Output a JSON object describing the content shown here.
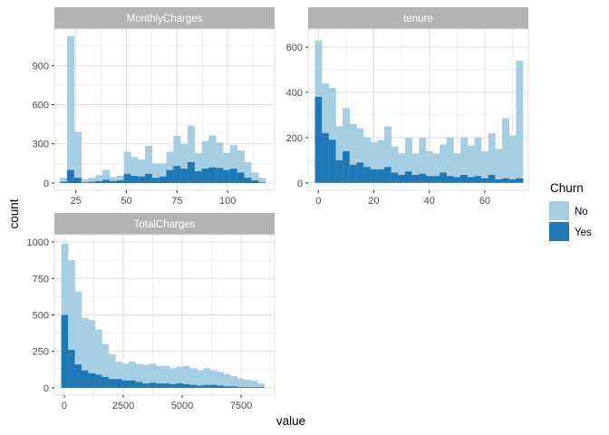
{
  "chart_data": {
    "type": "bar",
    "subtype": "faceted stacked histogram",
    "xlabel": "value",
    "ylabel": "count",
    "colors": {
      "No": "#a6cee3",
      "Yes": "#1f78b4",
      "strip_background": "#b3b3b3",
      "grid": "#dedede"
    },
    "legend": {
      "title": "Churn",
      "position": "right",
      "entries": [
        "No",
        "Yes"
      ]
    },
    "grid": true,
    "facets": [
      {
        "strip": "MonthlyCharges",
        "xlim": [
          14.4,
          123.2
        ],
        "ylim": [
          -56,
          1180
        ],
        "x_ticks": [
          25,
          50,
          75,
          100
        ],
        "x_tick_labels": [
          "25",
          "50",
          "75",
          "100"
        ],
        "y_ticks": [
          0,
          300,
          600,
          900
        ],
        "y_tick_labels": [
          "0",
          "300",
          "600",
          "900"
        ],
        "binwidth": 3.5,
        "bin_starts": [
          17.2,
          20.7,
          24.2,
          27.7,
          31.2,
          34.7,
          38.2,
          41.7,
          45.2,
          48.7,
          52.2,
          55.7,
          59.2,
          62.7,
          66.2,
          69.7,
          73.2,
          76.7,
          80.2,
          83.7,
          87.2,
          90.7,
          94.2,
          97.7,
          101.2,
          104.7,
          108.2,
          111.7,
          115.2
        ],
        "total": [
          42,
          1124,
          392,
          30,
          40,
          60,
          100,
          45,
          55,
          240,
          200,
          180,
          285,
          150,
          150,
          240,
          360,
          300,
          440,
          230,
          320,
          365,
          310,
          230,
          290,
          250,
          160,
          80,
          40
        ],
        "yes": [
          10,
          100,
          40,
          5,
          8,
          15,
          25,
          15,
          20,
          70,
          55,
          50,
          70,
          40,
          50,
          100,
          130,
          110,
          160,
          90,
          110,
          120,
          115,
          100,
          110,
          80,
          40,
          20,
          5
        ]
      },
      {
        "strip": "tenure",
        "xlim": [
          -3.7,
          75.7
        ],
        "ylim": [
          -33,
          680
        ],
        "x_ticks": [
          0,
          20,
          40,
          60
        ],
        "x_tick_labels": [
          "0",
          "20",
          "40",
          "60"
        ],
        "y_ticks": [
          0,
          200,
          400,
          600
        ],
        "y_tick_labels": [
          "0",
          "200",
          "400",
          "600"
        ],
        "binwidth": 2.5,
        "bin_starts": [
          -1.25,
          1.25,
          3.75,
          6.25,
          8.75,
          11.25,
          13.75,
          16.25,
          18.75,
          21.25,
          23.75,
          26.25,
          28.75,
          31.25,
          33.75,
          36.25,
          38.75,
          41.25,
          43.75,
          46.25,
          48.75,
          51.25,
          53.75,
          56.25,
          58.75,
          61.25,
          63.75,
          66.25,
          68.75,
          71.25
        ],
        "total": [
          630,
          440,
          420,
          250,
          330,
          260,
          240,
          200,
          180,
          190,
          250,
          160,
          130,
          200,
          130,
          200,
          140,
          130,
          170,
          200,
          130,
          200,
          165,
          200,
          140,
          220,
          150,
          285,
          210,
          540
        ],
        "yes": [
          380,
          220,
          190,
          100,
          140,
          80,
          90,
          70,
          60,
          60,
          70,
          45,
          35,
          50,
          35,
          40,
          30,
          30,
          45,
          30,
          25,
          35,
          25,
          30,
          20,
          35,
          15,
          20,
          15,
          20
        ]
      },
      {
        "strip": "TotalCharges",
        "xlim": [
          -420,
          8920
        ],
        "ylim": [
          -50,
          1050
        ],
        "x_ticks": [
          0,
          2500,
          5000,
          7500
        ],
        "x_tick_labels": [
          "0",
          "2500",
          "5000",
          "7500"
        ],
        "y_ticks": [
          0,
          250,
          500,
          750,
          1000
        ],
        "y_tick_labels": [
          "0",
          "250",
          "500",
          "750",
          "1000"
        ],
        "binwidth": 287,
        "bin_starts": [
          -127,
          160,
          447,
          734,
          1021,
          1308,
          1595,
          1882,
          2169,
          2456,
          2743,
          3030,
          3317,
          3604,
          3891,
          4178,
          4465,
          4752,
          5039,
          5326,
          5613,
          5900,
          6187,
          6474,
          6761,
          7048,
          7335,
          7622,
          7909,
          8196
        ],
        "total": [
          990,
          875,
          660,
          480,
          465,
          400,
          300,
          230,
          180,
          165,
          180,
          165,
          160,
          165,
          150,
          150,
          135,
          145,
          150,
          135,
          120,
          135,
          120,
          110,
          95,
          80,
          65,
          55,
          50,
          30
        ],
        "yes": [
          500,
          260,
          160,
          120,
          100,
          90,
          75,
          60,
          60,
          50,
          50,
          40,
          30,
          35,
          30,
          30,
          25,
          30,
          25,
          20,
          15,
          20,
          20,
          15,
          10,
          10,
          5,
          5,
          5,
          5
        ]
      }
    ]
  }
}
